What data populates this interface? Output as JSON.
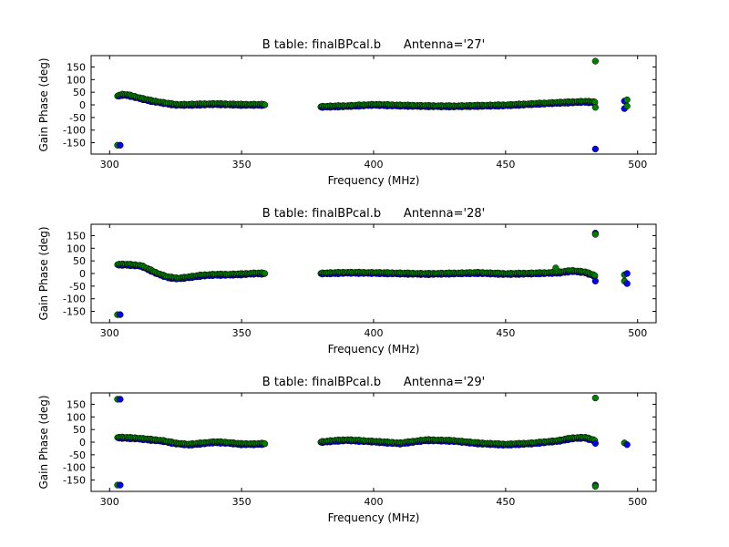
{
  "colors": {
    "series_a": "#0000ff",
    "series_b": "#008000",
    "edge": "#000000"
  },
  "chart_data": [
    {
      "type": "scatter",
      "title": "B table: finalBPcal.b      Antenna='27'",
      "xlabel": "Frequency (MHz)",
      "ylabel": "Gain Phase (deg)",
      "xlim": [
        293,
        507
      ],
      "ylim": [
        -195,
        195
      ],
      "xticks": [
        300,
        350,
        400,
        450,
        500
      ],
      "yticks": [
        150,
        100,
        50,
        0,
        -50,
        -100,
        -150
      ],
      "grid": false,
      "segments": [
        {
          "x": [
            303,
            305,
            307,
            310,
            313,
            316,
            320,
            325,
            330,
            340,
            350,
            359
          ],
          "y": [
            35,
            40,
            38,
            30,
            22,
            15,
            8,
            0,
            0,
            3,
            0,
            0
          ]
        },
        {
          "x": [
            380,
            390,
            400,
            410,
            420,
            430,
            440,
            450,
            460,
            470,
            480,
            484
          ],
          "y": [
            -8,
            -5,
            0,
            -3,
            -5,
            -6,
            -4,
            -2,
            3,
            8,
            12,
            10
          ]
        }
      ],
      "outliers": [
        {
          "x": 303,
          "y": -160
        },
        {
          "x": 304,
          "y": -160
        },
        {
          "x": 484,
          "y": 173
        },
        {
          "x": 484,
          "y": -175
        },
        {
          "x": 484,
          "y": -10
        },
        {
          "x": 495,
          "y": 15
        },
        {
          "x": 496,
          "y": 20
        },
        {
          "x": 495,
          "y": -15
        },
        {
          "x": 496,
          "y": -5
        }
      ]
    },
    {
      "type": "scatter",
      "title": "B table: finalBPcal.b      Antenna='28'",
      "xlabel": "Frequency (MHz)",
      "ylabel": "Gain Phase (deg)",
      "xlim": [
        293,
        507
      ],
      "ylim": [
        -195,
        195
      ],
      "xticks": [
        300,
        350,
        400,
        450,
        500
      ],
      "yticks": [
        150,
        100,
        50,
        0,
        -50,
        -100,
        -150
      ],
      "grid": false,
      "segments": [
        {
          "x": [
            303,
            306,
            309,
            312,
            315,
            318,
            322,
            326,
            330,
            335,
            340,
            345,
            350,
            355,
            359
          ],
          "y": [
            35,
            35,
            33,
            30,
            15,
            0,
            -15,
            -20,
            -15,
            -8,
            -5,
            -5,
            -3,
            0,
            0
          ]
        },
        {
          "x": [
            380,
            390,
            400,
            410,
            420,
            430,
            440,
            450,
            460,
            470,
            475,
            480,
            484
          ],
          "y": [
            0,
            3,
            2,
            0,
            -2,
            0,
            2,
            -2,
            0,
            3,
            10,
            5,
            -10
          ]
        }
      ],
      "outliers": [
        {
          "x": 303,
          "y": -163
        },
        {
          "x": 304,
          "y": -163
        },
        {
          "x": 469,
          "y": 22
        },
        {
          "x": 484,
          "y": 160
        },
        {
          "x": 484,
          "y": 155
        },
        {
          "x": 484,
          "y": -30
        },
        {
          "x": 495,
          "y": -30
        },
        {
          "x": 496,
          "y": -40
        },
        {
          "x": 495,
          "y": -5
        },
        {
          "x": 496,
          "y": 0
        }
      ]
    },
    {
      "type": "scatter",
      "title": "B table: finalBPcal.b      Antenna='29'",
      "xlabel": "Frequency (MHz)",
      "ylabel": "Gain Phase (deg)",
      "xlim": [
        293,
        507
      ],
      "ylim": [
        -195,
        195
      ],
      "xticks": [
        300,
        350,
        400,
        450,
        500
      ],
      "yticks": [
        150,
        100,
        50,
        0,
        -50,
        -100,
        -150
      ],
      "grid": false,
      "segments": [
        {
          "x": [
            303,
            306,
            310,
            315,
            320,
            325,
            330,
            335,
            340,
            345,
            350,
            355,
            359
          ],
          "y": [
            18,
            17,
            15,
            10,
            5,
            -5,
            -10,
            -5,
            0,
            -3,
            -8,
            -8,
            -6
          ]
        },
        {
          "x": [
            380,
            385,
            390,
            395,
            400,
            410,
            420,
            430,
            440,
            450,
            460,
            470,
            475,
            480,
            484
          ],
          "y": [
            0,
            5,
            8,
            5,
            2,
            -5,
            8,
            5,
            -5,
            -10,
            -5,
            5,
            15,
            18,
            5
          ]
        }
      ],
      "outliers": [
        {
          "x": 303,
          "y": 170
        },
        {
          "x": 304,
          "y": 170
        },
        {
          "x": 303,
          "y": -170
        },
        {
          "x": 304,
          "y": -170
        },
        {
          "x": 484,
          "y": 175
        },
        {
          "x": 484,
          "y": -170
        },
        {
          "x": 484,
          "y": -175
        },
        {
          "x": 484,
          "y": -5
        },
        {
          "x": 495,
          "y": -3
        },
        {
          "x": 496,
          "y": -10
        }
      ]
    }
  ]
}
